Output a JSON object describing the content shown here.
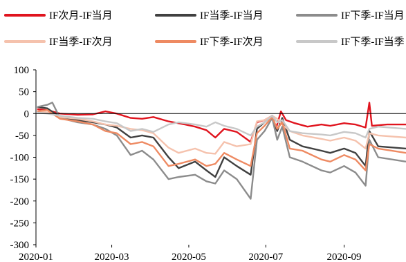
{
  "chart_data": {
    "type": "line",
    "title": "",
    "xlabel": "",
    "ylabel": "",
    "ylim": [
      -300,
      100
    ],
    "yticks": [
      100,
      50,
      0,
      -50,
      -100,
      -150,
      -200,
      -250,
      -300
    ],
    "xlim": [
      "2020-01-01",
      "2020-10-20"
    ],
    "xticks": [
      {
        "date": "2020-01-01",
        "label": "2020-01"
      },
      {
        "date": "2020-03-01",
        "label": "2020-03"
      },
      {
        "date": "2020-05-01",
        "label": "2020-05"
      },
      {
        "date": "2020-07-01",
        "label": "2020-07"
      },
      {
        "date": "2020-09-01",
        "label": "2020-09"
      }
    ],
    "grid": false,
    "legend_position": "top",
    "series": [
      {
        "name": "IF次月-IF当月",
        "color": "#e0141e",
        "points": [
          [
            "2020-01-02",
            10
          ],
          [
            "2020-01-10",
            8
          ],
          [
            "2020-01-20",
            0
          ],
          [
            "2020-02-03",
            -3
          ],
          [
            "2020-02-15",
            -2
          ],
          [
            "2020-02-25",
            5
          ],
          [
            "2020-03-05",
            0
          ],
          [
            "2020-03-16",
            -10
          ],
          [
            "2020-03-25",
            -12
          ],
          [
            "2020-04-03",
            -8
          ],
          [
            "2020-04-15",
            -18
          ],
          [
            "2020-04-28",
            -25
          ],
          [
            "2020-05-06",
            -30
          ],
          [
            "2020-05-15",
            -38
          ],
          [
            "2020-05-22",
            -55
          ],
          [
            "2020-05-29",
            -35
          ],
          [
            "2020-06-08",
            -42
          ],
          [
            "2020-06-19",
            -65
          ],
          [
            "2020-06-24",
            -20
          ],
          [
            "2020-06-30",
            -15
          ],
          [
            "2020-07-06",
            -5
          ],
          [
            "2020-07-09",
            -35
          ],
          [
            "2020-07-13",
            5
          ],
          [
            "2020-07-17",
            -15
          ],
          [
            "2020-07-24",
            -22
          ],
          [
            "2020-08-03",
            -30
          ],
          [
            "2020-08-14",
            -25
          ],
          [
            "2020-08-21",
            -28
          ],
          [
            "2020-09-01",
            -22
          ],
          [
            "2020-09-10",
            -25
          ],
          [
            "2020-09-18",
            -32
          ],
          [
            "2020-09-21",
            25
          ],
          [
            "2020-09-23",
            -28
          ],
          [
            "2020-10-05",
            -25
          ],
          [
            "2020-10-20",
            -25
          ]
        ]
      },
      {
        "name": "IF当季-IF当月",
        "color": "#404040",
        "points": [
          [
            "2020-01-02",
            15
          ],
          [
            "2020-01-10",
            12
          ],
          [
            "2020-01-20",
            -8
          ],
          [
            "2020-02-03",
            -15
          ],
          [
            "2020-02-15",
            -20
          ],
          [
            "2020-02-25",
            -25
          ],
          [
            "2020-03-05",
            -32
          ],
          [
            "2020-03-16",
            -55
          ],
          [
            "2020-03-25",
            -50
          ],
          [
            "2020-04-03",
            -55
          ],
          [
            "2020-04-15",
            -100
          ],
          [
            "2020-04-23",
            -125
          ],
          [
            "2020-05-06",
            -110
          ],
          [
            "2020-05-15",
            -130
          ],
          [
            "2020-05-22",
            -145
          ],
          [
            "2020-05-29",
            -100
          ],
          [
            "2020-06-08",
            -120
          ],
          [
            "2020-06-19",
            -140
          ],
          [
            "2020-06-24",
            -35
          ],
          [
            "2020-06-30",
            -20
          ],
          [
            "2020-07-06",
            -5
          ],
          [
            "2020-07-10",
            -40
          ],
          [
            "2020-07-14",
            -10
          ],
          [
            "2020-07-20",
            -60
          ],
          [
            "2020-07-30",
            -75
          ],
          [
            "2020-08-14",
            -85
          ],
          [
            "2020-08-21",
            -90
          ],
          [
            "2020-09-01",
            -80
          ],
          [
            "2020-09-10",
            -90
          ],
          [
            "2020-09-18",
            -120
          ],
          [
            "2020-09-21",
            -40
          ],
          [
            "2020-09-28",
            -75
          ],
          [
            "2020-10-20",
            -80
          ]
        ]
      },
      {
        "name": "IF下季-IF当月",
        "color": "#8c8c8c",
        "points": [
          [
            "2020-01-02",
            15
          ],
          [
            "2020-01-10",
            20
          ],
          [
            "2020-01-14",
            25
          ],
          [
            "2020-01-20",
            -10
          ],
          [
            "2020-02-03",
            -20
          ],
          [
            "2020-02-15",
            -25
          ],
          [
            "2020-02-25",
            -35
          ],
          [
            "2020-03-05",
            -50
          ],
          [
            "2020-03-16",
            -95
          ],
          [
            "2020-03-25",
            -85
          ],
          [
            "2020-04-03",
            -105
          ],
          [
            "2020-04-15",
            -150
          ],
          [
            "2020-04-23",
            -145
          ],
          [
            "2020-05-06",
            -140
          ],
          [
            "2020-05-15",
            -155
          ],
          [
            "2020-05-22",
            -160
          ],
          [
            "2020-05-29",
            -130
          ],
          [
            "2020-06-08",
            -150
          ],
          [
            "2020-06-19",
            -195
          ],
          [
            "2020-06-24",
            -60
          ],
          [
            "2020-06-30",
            -40
          ],
          [
            "2020-07-06",
            -10
          ],
          [
            "2020-07-10",
            -60
          ],
          [
            "2020-07-14",
            -30
          ],
          [
            "2020-07-20",
            -100
          ],
          [
            "2020-07-30",
            -110
          ],
          [
            "2020-08-14",
            -130
          ],
          [
            "2020-08-21",
            -135
          ],
          [
            "2020-09-01",
            -120
          ],
          [
            "2020-09-10",
            -135
          ],
          [
            "2020-09-18",
            -165
          ],
          [
            "2020-09-21",
            -60
          ],
          [
            "2020-09-28",
            -100
          ],
          [
            "2020-10-20",
            -110
          ]
        ]
      },
      {
        "name": "IF当季-IF次月",
        "color": "#f5c2ad",
        "points": [
          [
            "2020-01-02",
            5
          ],
          [
            "2020-01-10",
            3
          ],
          [
            "2020-01-20",
            -8
          ],
          [
            "2020-02-03",
            -12
          ],
          [
            "2020-02-15",
            -18
          ],
          [
            "2020-02-25",
            -25
          ],
          [
            "2020-03-05",
            -28
          ],
          [
            "2020-03-16",
            -35
          ],
          [
            "2020-03-25",
            -38
          ],
          [
            "2020-04-03",
            -45
          ],
          [
            "2020-04-15",
            -78
          ],
          [
            "2020-04-23",
            -90
          ],
          [
            "2020-05-06",
            -80
          ],
          [
            "2020-05-15",
            -90
          ],
          [
            "2020-05-22",
            -92
          ],
          [
            "2020-05-29",
            -65
          ],
          [
            "2020-06-08",
            -75
          ],
          [
            "2020-06-19",
            -70
          ],
          [
            "2020-06-24",
            -18
          ],
          [
            "2020-06-30",
            -15
          ],
          [
            "2020-07-06",
            -5
          ],
          [
            "2020-07-10",
            -12
          ],
          [
            "2020-07-14",
            -25
          ],
          [
            "2020-07-20",
            -40
          ],
          [
            "2020-07-30",
            -50
          ],
          [
            "2020-08-14",
            -58
          ],
          [
            "2020-08-21",
            -62
          ],
          [
            "2020-09-01",
            -55
          ],
          [
            "2020-09-10",
            -62
          ],
          [
            "2020-09-18",
            -80
          ],
          [
            "2020-09-21",
            -45
          ],
          [
            "2020-09-28",
            -50
          ],
          [
            "2020-10-20",
            -55
          ]
        ]
      },
      {
        "name": "IF下季-IF次月",
        "color": "#ee8a62",
        "points": [
          [
            "2020-01-02",
            5
          ],
          [
            "2020-01-10",
            8
          ],
          [
            "2020-01-20",
            -12
          ],
          [
            "2020-02-03",
            -18
          ],
          [
            "2020-02-15",
            -25
          ],
          [
            "2020-02-25",
            -40
          ],
          [
            "2020-03-05",
            -45
          ],
          [
            "2020-03-16",
            -70
          ],
          [
            "2020-03-25",
            -65
          ],
          [
            "2020-04-03",
            -75
          ],
          [
            "2020-04-15",
            -120
          ],
          [
            "2020-04-23",
            -115
          ],
          [
            "2020-05-06",
            -105
          ],
          [
            "2020-05-15",
            -120
          ],
          [
            "2020-05-22",
            -115
          ],
          [
            "2020-05-29",
            -90
          ],
          [
            "2020-06-08",
            -105
          ],
          [
            "2020-06-19",
            -120
          ],
          [
            "2020-06-24",
            -45
          ],
          [
            "2020-06-30",
            -28
          ],
          [
            "2020-07-06",
            -8
          ],
          [
            "2020-07-10",
            -35
          ],
          [
            "2020-07-14",
            -20
          ],
          [
            "2020-07-20",
            -80
          ],
          [
            "2020-07-30",
            -85
          ],
          [
            "2020-08-14",
            -105
          ],
          [
            "2020-08-21",
            -110
          ],
          [
            "2020-09-01",
            -95
          ],
          [
            "2020-09-10",
            -105
          ],
          [
            "2020-09-18",
            -130
          ],
          [
            "2020-09-21",
            -70
          ],
          [
            "2020-09-28",
            -80
          ],
          [
            "2020-10-20",
            -90
          ]
        ]
      },
      {
        "name": "IF下季-IF当季",
        "color": "#c8c8c8",
        "points": [
          [
            "2020-01-02",
            2
          ],
          [
            "2020-01-10",
            0
          ],
          [
            "2020-01-20",
            -5
          ],
          [
            "2020-02-03",
            -10
          ],
          [
            "2020-02-15",
            -12
          ],
          [
            "2020-02-25",
            -18
          ],
          [
            "2020-03-05",
            -22
          ],
          [
            "2020-03-16",
            -40
          ],
          [
            "2020-03-25",
            -35
          ],
          [
            "2020-04-03",
            -42
          ],
          [
            "2020-04-15",
            -25
          ],
          [
            "2020-04-23",
            -20
          ],
          [
            "2020-05-06",
            -25
          ],
          [
            "2020-05-15",
            -30
          ],
          [
            "2020-05-22",
            -20
          ],
          [
            "2020-05-29",
            -28
          ],
          [
            "2020-06-08",
            -35
          ],
          [
            "2020-06-19",
            -50
          ],
          [
            "2020-06-24",
            -30
          ],
          [
            "2020-06-30",
            -20
          ],
          [
            "2020-07-06",
            -5
          ],
          [
            "2020-07-10",
            -20
          ],
          [
            "2020-07-14",
            -15
          ],
          [
            "2020-07-20",
            -40
          ],
          [
            "2020-07-30",
            -45
          ],
          [
            "2020-08-14",
            -48
          ],
          [
            "2020-08-21",
            -50
          ],
          [
            "2020-09-01",
            -42
          ],
          [
            "2020-09-10",
            -45
          ],
          [
            "2020-09-18",
            -55
          ],
          [
            "2020-09-21",
            -35
          ],
          [
            "2020-09-28",
            -30
          ],
          [
            "2020-10-20",
            -35
          ]
        ]
      }
    ]
  }
}
